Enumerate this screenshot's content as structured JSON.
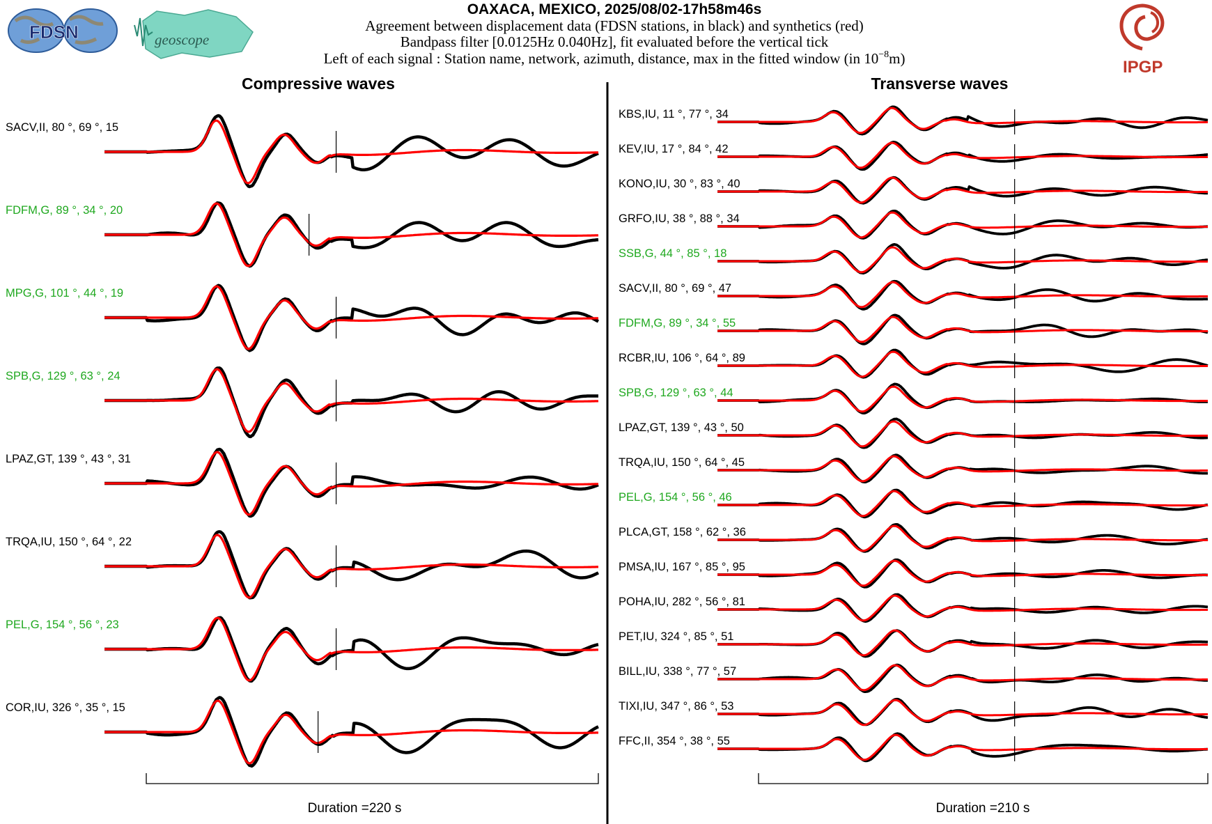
{
  "header": {
    "title": "OAXACA, MEXICO, 2025/08/02-17h58m46s",
    "line1": "Agreement between displacement data (FDSN stations, in black) and synthetics (red)",
    "line2": "Bandpass filter [0.0125Hz 0.040Hz], fit evaluated before the vertical tick",
    "line3_prefix": "Left of each signal : Station name, network, azimuth, distance, max in the fitted window (in 10",
    "line3_exp": "−8",
    "line3_suffix": "m)"
  },
  "logos": {
    "fdsn": "FDSN",
    "geoscope": "geoscope",
    "ipgp": "IPGP",
    "ipgp_color": "#c0392b"
  },
  "colors": {
    "data": "#000000",
    "synthetic": "#ff0000",
    "label_black": "#000000",
    "label_green": "#1fa81f"
  },
  "chart_data": [
    {
      "type": "line",
      "title": "Compressive waves",
      "xlabel": "Duration =220 s",
      "duration_s": 220,
      "series": [
        {
          "name": "data",
          "color": "#000000"
        },
        {
          "name": "synthetics",
          "color": "#ff0000"
        }
      ],
      "stations": [
        {
          "station": "SACV",
          "network": "II",
          "azimuth": 80,
          "distance": 69,
          "max": 15,
          "color": "black",
          "tick_fraction": 0.42
        },
        {
          "station": "FDFM",
          "network": "G",
          "azimuth": 89,
          "distance": 34,
          "max": 20,
          "color": "green",
          "tick_fraction": 0.36
        },
        {
          "station": "MPG",
          "network": "G",
          "azimuth": 101,
          "distance": 44,
          "max": 19,
          "color": "green",
          "tick_fraction": 0.42
        },
        {
          "station": "SPB",
          "network": "G",
          "azimuth": 129,
          "distance": 63,
          "max": 24,
          "color": "green",
          "tick_fraction": 0.42
        },
        {
          "station": "LPAZ",
          "network": "GT",
          "azimuth": 139,
          "distance": 43,
          "max": 31,
          "color": "black",
          "tick_fraction": 0.42
        },
        {
          "station": "TRQA",
          "network": "IU",
          "azimuth": 150,
          "distance": 64,
          "max": 22,
          "color": "black",
          "tick_fraction": 0.42
        },
        {
          "station": "PEL",
          "network": "G",
          "azimuth": 154,
          "distance": 56,
          "max": 23,
          "color": "green",
          "tick_fraction": 0.42
        },
        {
          "station": "COR",
          "network": "IU",
          "azimuth": 326,
          "distance": 35,
          "max": 15,
          "color": "black",
          "tick_fraction": 0.38
        }
      ]
    },
    {
      "type": "line",
      "title": "Transverse waves",
      "xlabel": "Duration =210 s",
      "duration_s": 210,
      "series": [
        {
          "name": "data",
          "color": "#000000"
        },
        {
          "name": "synthetics",
          "color": "#ff0000"
        }
      ],
      "stations": [
        {
          "station": "KBS",
          "network": "IU",
          "azimuth": 11,
          "distance": 77,
          "max": 34,
          "color": "black",
          "tick_fraction": 0.57
        },
        {
          "station": "KEV",
          "network": "IU",
          "azimuth": 17,
          "distance": 84,
          "max": 42,
          "color": "black",
          "tick_fraction": 0.57
        },
        {
          "station": "KONO",
          "network": "IU",
          "azimuth": 30,
          "distance": 83,
          "max": 40,
          "color": "black",
          "tick_fraction": 0.57
        },
        {
          "station": "GRFO",
          "network": "IU",
          "azimuth": 38,
          "distance": 88,
          "max": 34,
          "color": "black",
          "tick_fraction": 0.57
        },
        {
          "station": "SSB",
          "network": "G",
          "azimuth": 44,
          "distance": 85,
          "max": 18,
          "color": "green",
          "tick_fraction": 0.57
        },
        {
          "station": "SACV",
          "network": "II",
          "azimuth": 80,
          "distance": 69,
          "max": 47,
          "color": "black",
          "tick_fraction": 0.57
        },
        {
          "station": "FDFM",
          "network": "G",
          "azimuth": 89,
          "distance": 34,
          "max": 55,
          "color": "green",
          "tick_fraction": 0.57
        },
        {
          "station": "RCBR",
          "network": "IU",
          "azimuth": 106,
          "distance": 64,
          "max": 89,
          "color": "black",
          "tick_fraction": 0.57
        },
        {
          "station": "SPB",
          "network": "G",
          "azimuth": 129,
          "distance": 63,
          "max": 44,
          "color": "green",
          "tick_fraction": 0.57
        },
        {
          "station": "LPAZ",
          "network": "GT",
          "azimuth": 139,
          "distance": 43,
          "max": 50,
          "color": "black",
          "tick_fraction": 0.57
        },
        {
          "station": "TRQA",
          "network": "IU",
          "azimuth": 150,
          "distance": 64,
          "max": 45,
          "color": "black",
          "tick_fraction": 0.57
        },
        {
          "station": "PEL",
          "network": "G",
          "azimuth": 154,
          "distance": 56,
          "max": 46,
          "color": "green",
          "tick_fraction": 0.57
        },
        {
          "station": "PLCA",
          "network": "GT",
          "azimuth": 158,
          "distance": 62,
          "max": 36,
          "color": "black",
          "tick_fraction": 0.57
        },
        {
          "station": "PMSA",
          "network": "IU",
          "azimuth": 167,
          "distance": 85,
          "max": 95,
          "color": "black",
          "tick_fraction": 0.57
        },
        {
          "station": "POHA",
          "network": "IU",
          "azimuth": 282,
          "distance": 56,
          "max": 81,
          "color": "black",
          "tick_fraction": 0.57
        },
        {
          "station": "PET",
          "network": "IU",
          "azimuth": 324,
          "distance": 85,
          "max": 51,
          "color": "black",
          "tick_fraction": 0.57
        },
        {
          "station": "BILL",
          "network": "IU",
          "azimuth": 338,
          "distance": 77,
          "max": 57,
          "color": "black",
          "tick_fraction": 0.57
        },
        {
          "station": "TIXI",
          "network": "IU",
          "azimuth": 347,
          "distance": 86,
          "max": 53,
          "color": "black",
          "tick_fraction": 0.57
        },
        {
          "station": "FFC",
          "network": "II",
          "azimuth": 354,
          "distance": 38,
          "max": 55,
          "color": "black",
          "tick_fraction": 0.57
        }
      ]
    }
  ]
}
